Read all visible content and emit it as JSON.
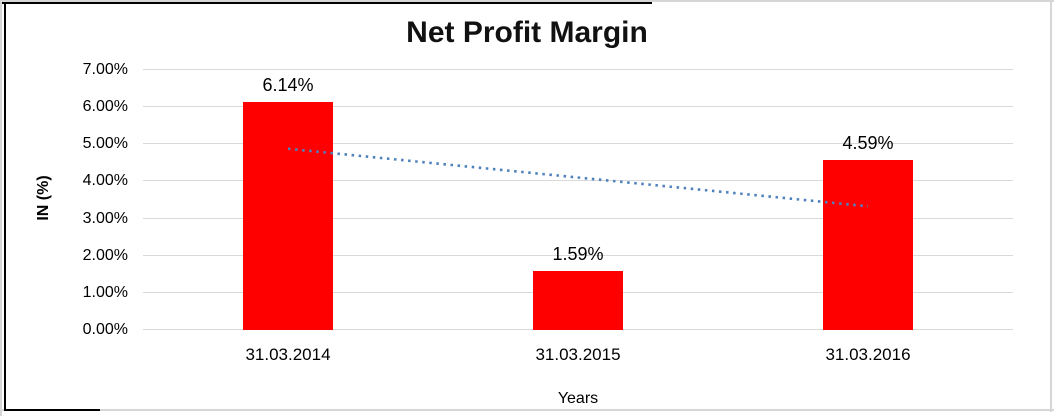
{
  "chart_data": {
    "type": "bar",
    "title": "Net Profit Margin",
    "categories": [
      "31.03.2014",
      "31.03.2015",
      "31.03.2016"
    ],
    "values": [
      6.14,
      1.59,
      4.59
    ],
    "data_labels": [
      "6.14%",
      "1.59%",
      "4.59%"
    ],
    "xlabel": "Years",
    "ylabel": "IN (%)",
    "ylim": [
      0,
      7
    ],
    "ytick_labels": [
      "0.00%",
      "1.00%",
      "2.00%",
      "3.00%",
      "4.00%",
      "5.00%",
      "6.00%",
      "7.00%"
    ],
    "grid": true,
    "legend_position": "none",
    "bar_color": "#ff0000",
    "gridline_color": "#d9d9d9",
    "trendline": {
      "type": "linear",
      "style": "dotted",
      "color": "#4f81bd",
      "start_value": 4.88,
      "end_value": 3.33
    }
  }
}
